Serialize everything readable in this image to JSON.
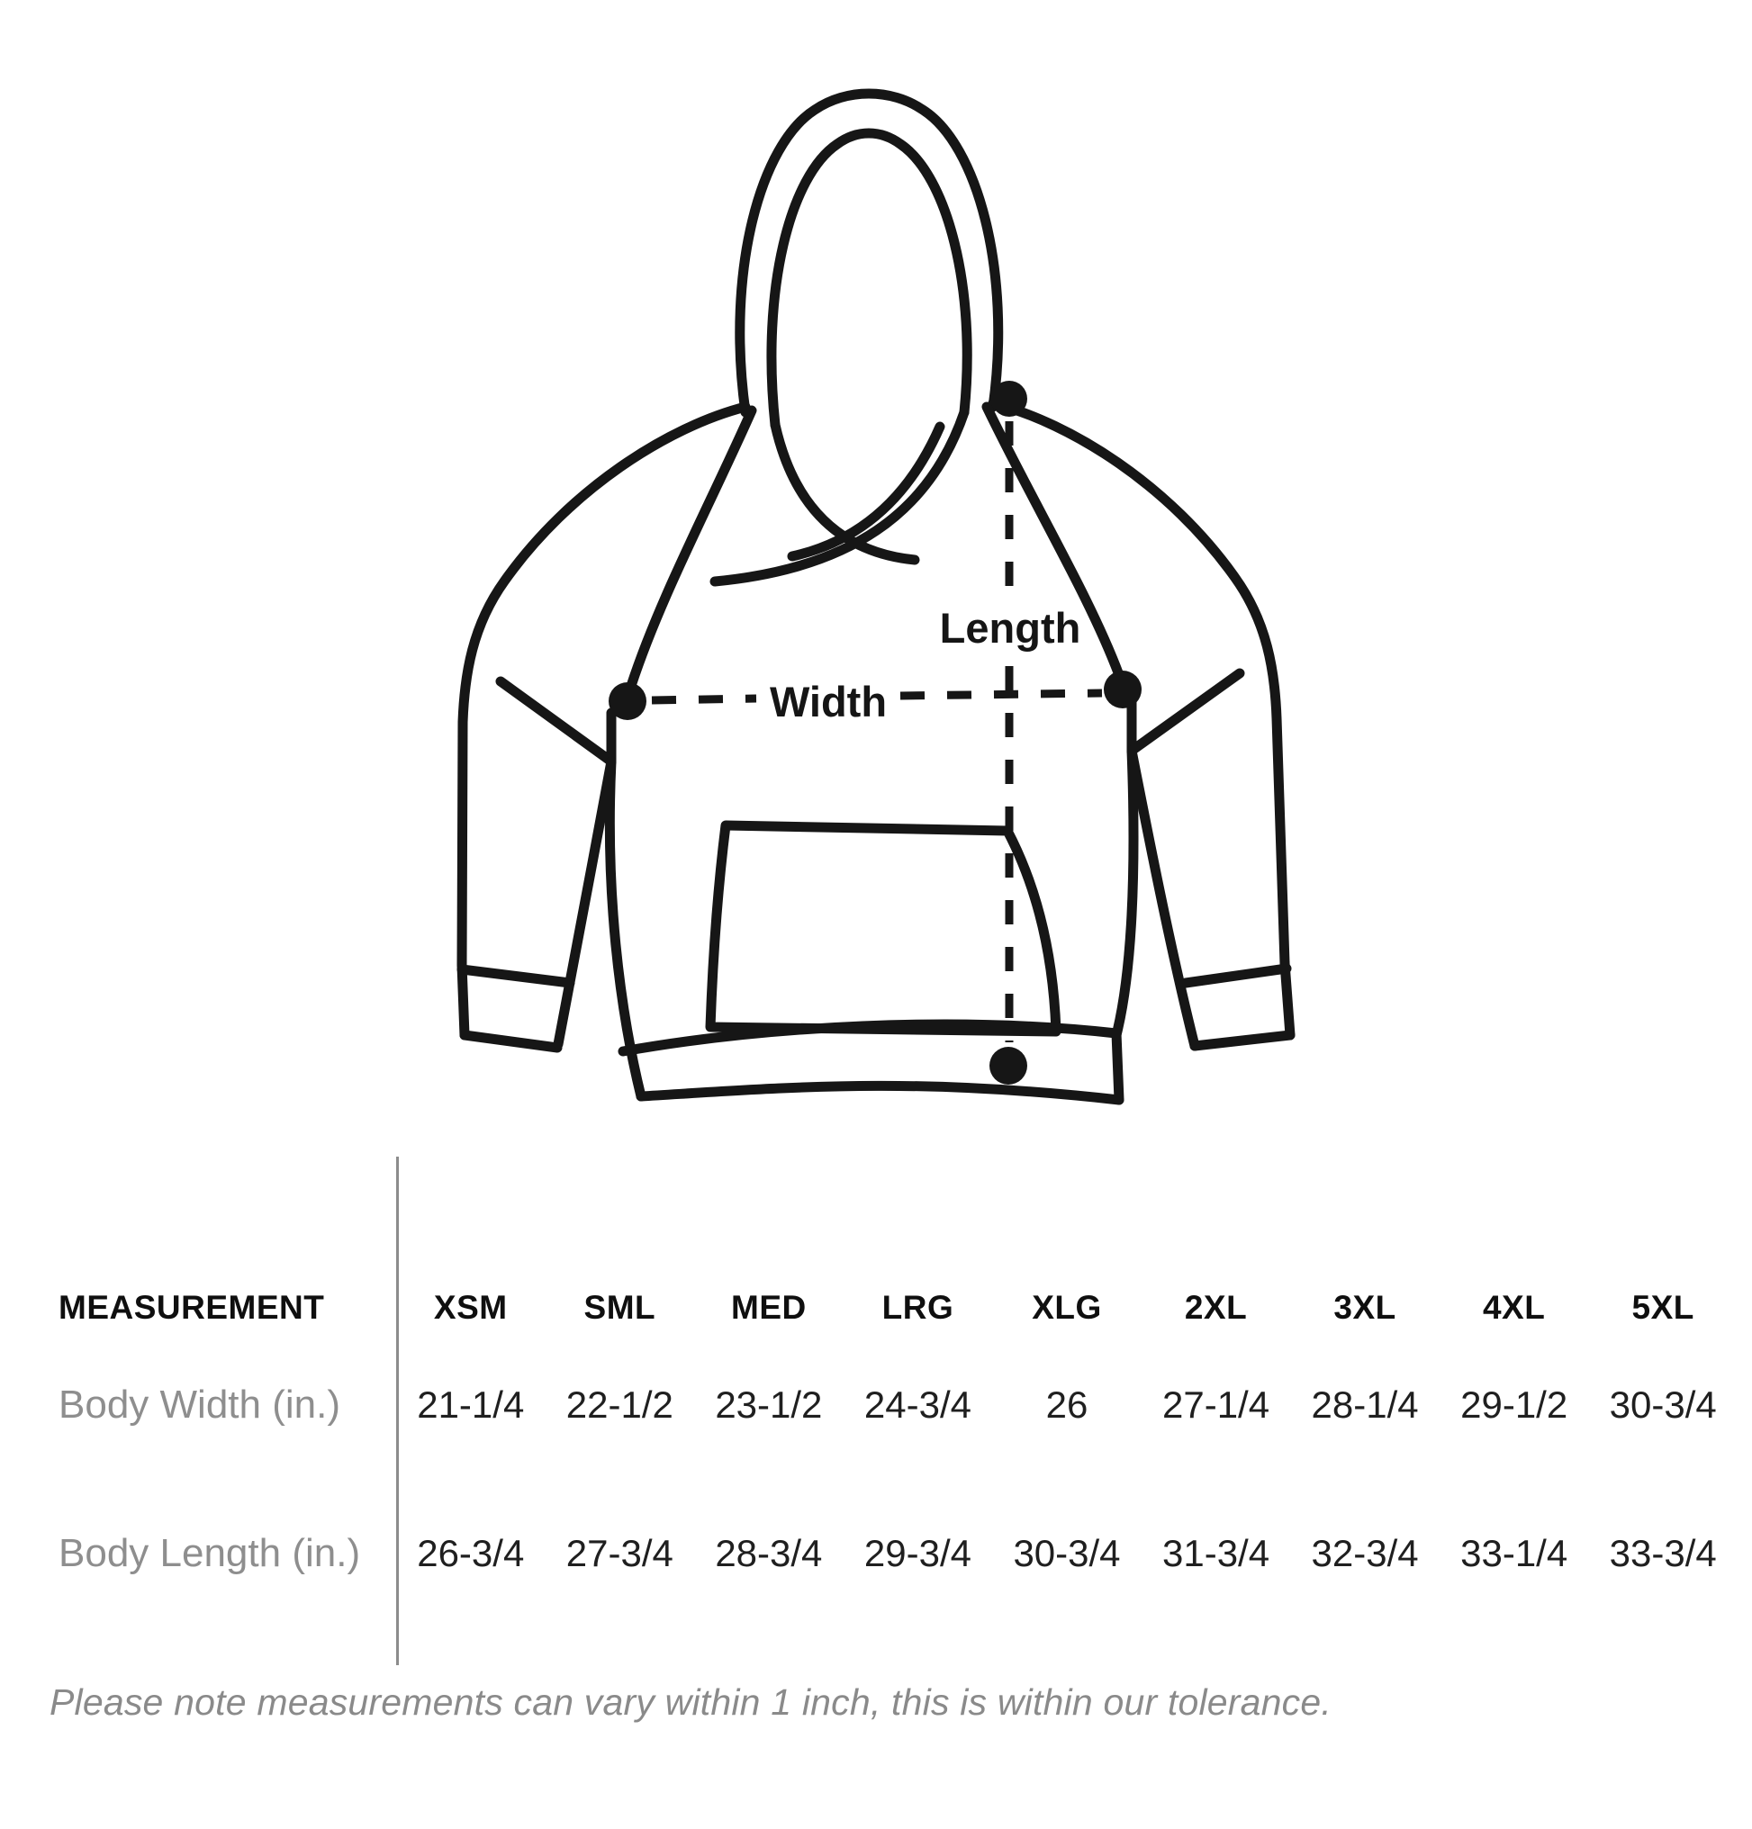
{
  "diagram": {
    "width_label": "Width",
    "length_label": "Length"
  },
  "table": {
    "measurement_header": "MEASUREMENT",
    "size_headers": [
      "XSM",
      "SML",
      "MED",
      "LRG",
      "XLG",
      "2XL",
      "3XL",
      "4XL",
      "5XL"
    ],
    "rows": [
      {
        "label": "Body Width (in.)",
        "values": [
          "21-1/4",
          "22-1/2",
          "23-1/2",
          "24-3/4",
          "26",
          "27-1/4",
          "28-1/4",
          "29-1/2",
          "30-3/4"
        ]
      },
      {
        "label": "Body Length (in.)",
        "values": [
          "26-3/4",
          "27-3/4",
          "28-3/4",
          "29-3/4",
          "30-3/4",
          "31-3/4",
          "32-3/4",
          "33-1/4",
          "33-3/4"
        ]
      }
    ]
  },
  "footer_note": "Please note measurements can vary within 1 inch, this is within our tolerance.",
  "colors": {
    "ink": "#161616",
    "muted_text": "#8e8e8e",
    "divider": "#8c8c8c"
  }
}
